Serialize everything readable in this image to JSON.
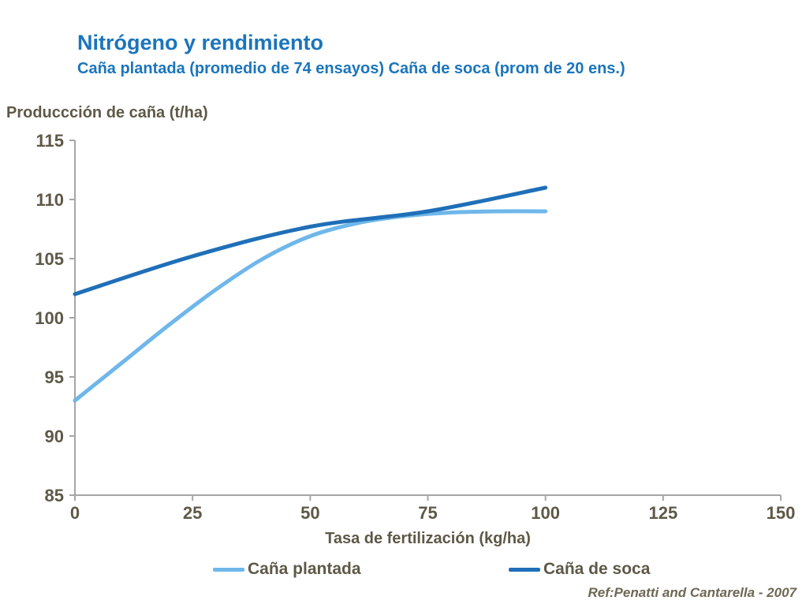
{
  "header": {
    "title": "Nitrógeno y rendimiento",
    "subtitle": "Caña plantada (promedio de 74 ensayos) Caña de soca (prom de 20 ens.)"
  },
  "footer": {
    "reference": "Ref:Penatti and Cantarella - 2007"
  },
  "colors": {
    "title_blue": "#1B75BC",
    "axis_text": "#5E5847",
    "axis_line": "#A6A6A6",
    "ref_text": "#6E6754",
    "plantada_line": "#6FB7EA",
    "soca_line": "#1F6FB8"
  },
  "chart_data": {
    "type": "line",
    "title": "Nitrógeno y rendimiento",
    "subtitle": "Caña plantada (promedio de 74 ensayos) Caña de soca (prom de 20 ens.)",
    "xlabel": "Tasa de fertilización (kg/ha)",
    "ylabel": "Produccción de caña (t/ha)",
    "xlim": [
      0,
      150
    ],
    "ylim": [
      85,
      115
    ],
    "xticks": [
      0,
      25,
      50,
      75,
      100,
      125,
      150
    ],
    "yticks": [
      85,
      90,
      95,
      100,
      105,
      110,
      115
    ],
    "grid": false,
    "legend_position": "bottom",
    "series": [
      {
        "name": "Caña plantada",
        "color": "#6FB7EA",
        "x": [
          0,
          10,
          20,
          30,
          40,
          50,
          60,
          70,
          80,
          90,
          100
        ],
        "y": [
          93,
          96.2,
          99.4,
          102.4,
          105,
          106.9,
          108,
          108.6,
          108.9,
          109,
          109
        ]
      },
      {
        "name": "Caña de soca",
        "color": "#1F6FB8",
        "x": [
          0,
          25,
          50,
          75,
          100
        ],
        "y": [
          102,
          105.2,
          107.7,
          109,
          111
        ]
      }
    ]
  }
}
